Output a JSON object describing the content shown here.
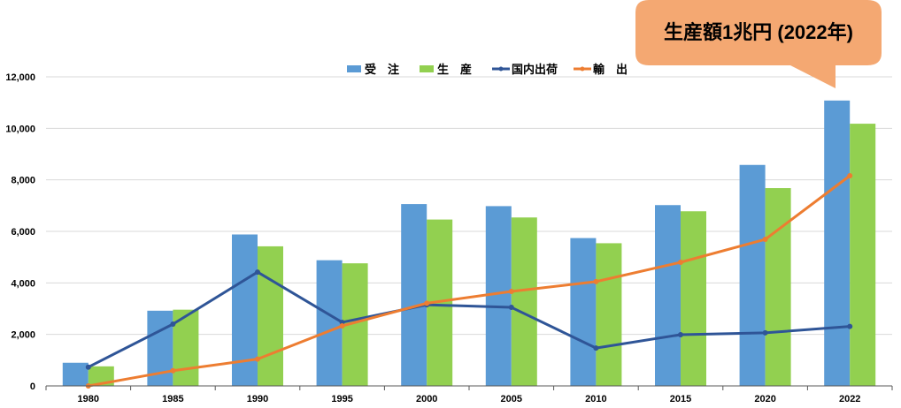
{
  "chart_data": {
    "type": "bar",
    "title": "",
    "xlabel": "",
    "ylabel": "",
    "ylim": [
      0,
      12000
    ],
    "yticks": [
      "0",
      "2,000",
      "4,000",
      "6,000",
      "8,000",
      "10,000",
      "12,000"
    ],
    "ytick_values": [
      0,
      2000,
      4000,
      6000,
      8000,
      10000,
      12000
    ],
    "grid": true,
    "legend_position": "top-center",
    "categories": [
      "1980",
      "1985",
      "1990",
      "1995",
      "2000",
      "2005",
      "2010",
      "2015",
      "2020",
      "2022"
    ],
    "series": [
      {
        "name": "受　注",
        "kind": "bar",
        "color": "#5b9bd5",
        "values": [
          900,
          2920,
          5880,
          4880,
          7060,
          6980,
          5740,
          7020,
          8580,
          11080
        ]
      },
      {
        "name": "生　産",
        "kind": "bar",
        "color": "#92d050",
        "values": [
          760,
          2960,
          5420,
          4760,
          6460,
          6540,
          5540,
          6780,
          7680,
          10180
        ]
      },
      {
        "name": "国内出荷",
        "kind": "line",
        "color": "#2f5597",
        "values": [
          730,
          2400,
          4420,
          2470,
          3150,
          3050,
          1470,
          1990,
          2060,
          2310
        ]
      },
      {
        "name": "輸　出",
        "kind": "line",
        "color": "#ed7d31",
        "values": [
          0,
          590,
          1040,
          2330,
          3210,
          3670,
          4050,
          4800,
          5690,
          8160
        ]
      }
    ],
    "annotations": [
      {
        "text": "生産額1兆円 (2022年)",
        "target": "2022",
        "color": "#f4a872"
      }
    ]
  }
}
